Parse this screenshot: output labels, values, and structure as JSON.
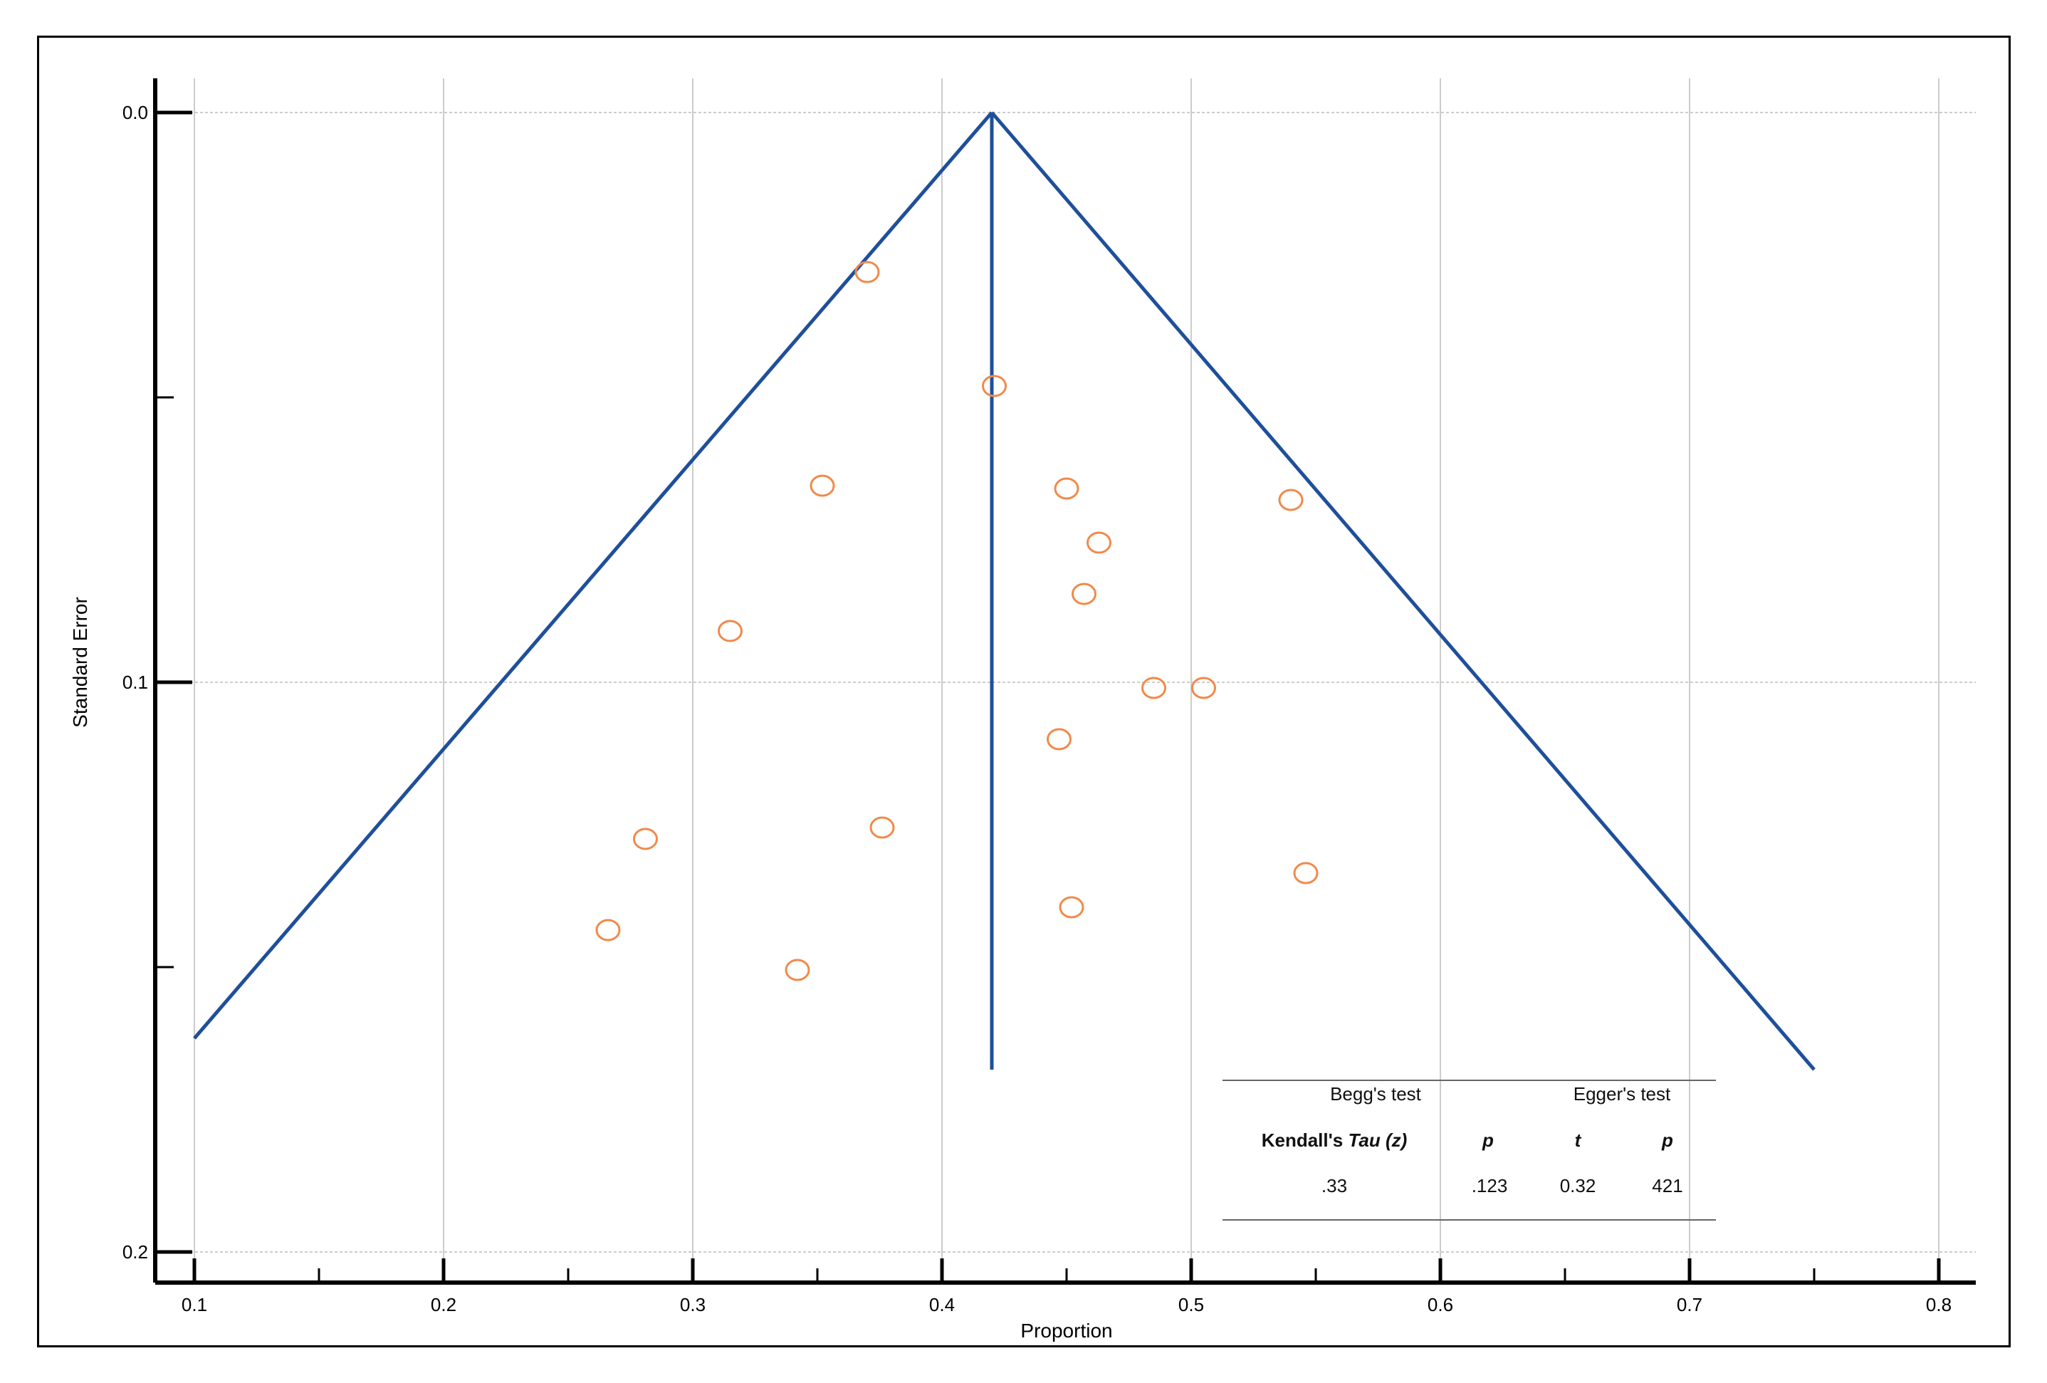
{
  "chart_data": {
    "type": "scatter",
    "subtype": "funnel plot",
    "title": "",
    "xlabel": "Proportion",
    "ylabel": "Standard Error",
    "xlim": [
      0.1,
      0.8
    ],
    "ylim": [
      0.2,
      0.0
    ],
    "y_inverted": true,
    "x_ticks": [
      "0.1",
      "0.2",
      "0.3",
      "0.4",
      "0.5",
      "0.6",
      "0.7",
      "0.8"
    ],
    "y_ticks": [
      "0.0",
      "0.1",
      "0.2"
    ],
    "grid": true,
    "pooled_estimate": 0.42,
    "funnel": {
      "apex": [
        0.42,
        0.0
      ],
      "left_end": [
        0.1,
        0.1625
      ],
      "right_end": [
        0.75,
        0.168
      ],
      "center_line_bottom": [
        0.42,
        0.168
      ]
    },
    "points": [
      {
        "x": 0.37,
        "y": 0.028
      },
      {
        "x": 0.421,
        "y": 0.048
      },
      {
        "x": 0.352,
        "y": 0.0655
      },
      {
        "x": 0.45,
        "y": 0.066
      },
      {
        "x": 0.54,
        "y": 0.068
      },
      {
        "x": 0.463,
        "y": 0.0755
      },
      {
        "x": 0.457,
        "y": 0.0845
      },
      {
        "x": 0.315,
        "y": 0.091
      },
      {
        "x": 0.485,
        "y": 0.101
      },
      {
        "x": 0.505,
        "y": 0.101
      },
      {
        "x": 0.447,
        "y": 0.11
      },
      {
        "x": 0.376,
        "y": 0.1255
      },
      {
        "x": 0.281,
        "y": 0.1275
      },
      {
        "x": 0.546,
        "y": 0.1335
      },
      {
        "x": 0.452,
        "y": 0.1395
      },
      {
        "x": 0.266,
        "y": 0.1435
      },
      {
        "x": 0.342,
        "y": 0.1505
      }
    ],
    "colors": {
      "funnel": "#1f4f9a",
      "points": "#f08a4b",
      "grid": "#cccccc"
    }
  },
  "stats_table": {
    "begg_header": "Begg's test",
    "egger_header": "Egger's test",
    "col1_prefix": "Kendall's ",
    "col1_italic": "Tau (z)",
    "col2": "p",
    "col3": "t",
    "col4": "p",
    "values": [
      ".33",
      ".123",
      "0.32",
      "421"
    ]
  }
}
